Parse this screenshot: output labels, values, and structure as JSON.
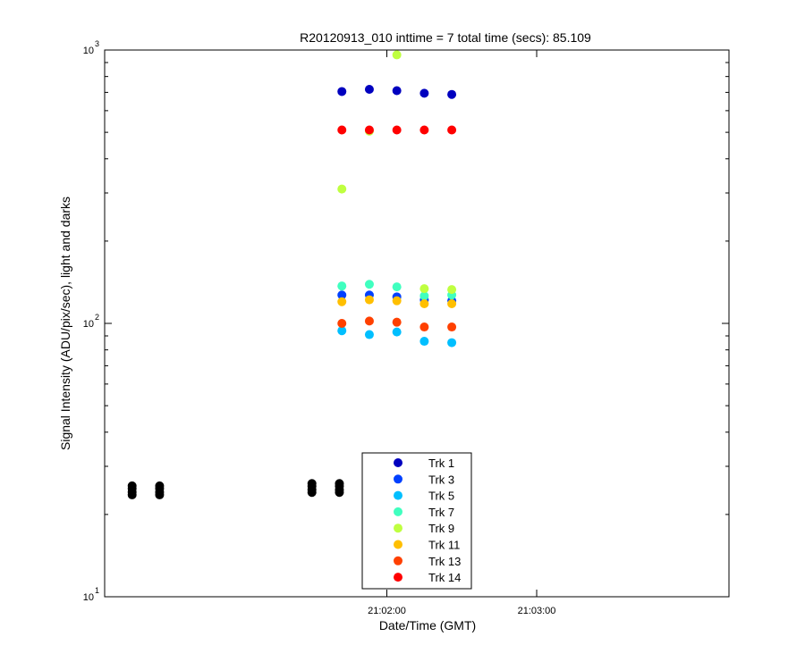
{
  "chart_data": {
    "type": "scatter",
    "title": "R20120913_010 inttime = 7 total time (secs): 85.109",
    "xlabel": "Date/Time (GMT)",
    "ylabel": "Signal Intensity (ADU/pix/sec), light and darks",
    "yscale": "log",
    "ylim": [
      10,
      1000
    ],
    "xlim_seconds": [
      -113,
      137
    ],
    "x_reference": "21:02:00",
    "x_ticks": [
      {
        "t": 0,
        "label": "21:02:00"
      },
      {
        "t": 60,
        "label": "21:03:00"
      }
    ],
    "y_ticks": [
      {
        "v": 10,
        "base": "10",
        "exp": "1"
      },
      {
        "v": 100,
        "base": "10",
        "exp": "2"
      },
      {
        "v": 1000,
        "base": "10",
        "exp": "3"
      }
    ],
    "x_seconds": [
      -18,
      -7,
      4,
      15,
      26
    ],
    "series": [
      {
        "name": "Trk 1",
        "color": "#0000bf",
        "values": [
          705,
          718,
          710,
          695,
          688
        ]
      },
      {
        "name": "Trk 3",
        "color": "#0040ff",
        "values": [
          127,
          127,
          125,
          122,
          121
        ]
      },
      {
        "name": "Trk 5",
        "color": "#00bfff",
        "values": [
          94,
          91,
          93,
          86,
          85
        ]
      },
      {
        "name": "Trk 7",
        "color": "#40ffbf",
        "values": [
          137,
          139,
          136,
          126,
          127
        ]
      },
      {
        "name": "Trk 9",
        "color": "#bfff40",
        "values": [
          310,
          505,
          960,
          134,
          133
        ]
      },
      {
        "name": "Trk 11",
        "color": "#ffbf00",
        "values": [
          120,
          122,
          121,
          118,
          118
        ]
      },
      {
        "name": "Trk 13",
        "color": "#ff4000",
        "values": [
          100,
          102,
          101,
          97,
          97
        ]
      },
      {
        "name": "Trk 14",
        "color": "#ff0000",
        "values": [
          510,
          510,
          510,
          510,
          510
        ]
      }
    ],
    "darks": {
      "name": "darks",
      "color": "#000000",
      "x_seconds": [
        -102,
        -91,
        -30,
        -19
      ],
      "values": [
        24.5,
        24.5,
        25,
        25
      ]
    },
    "legend_position": "bottom-center"
  }
}
